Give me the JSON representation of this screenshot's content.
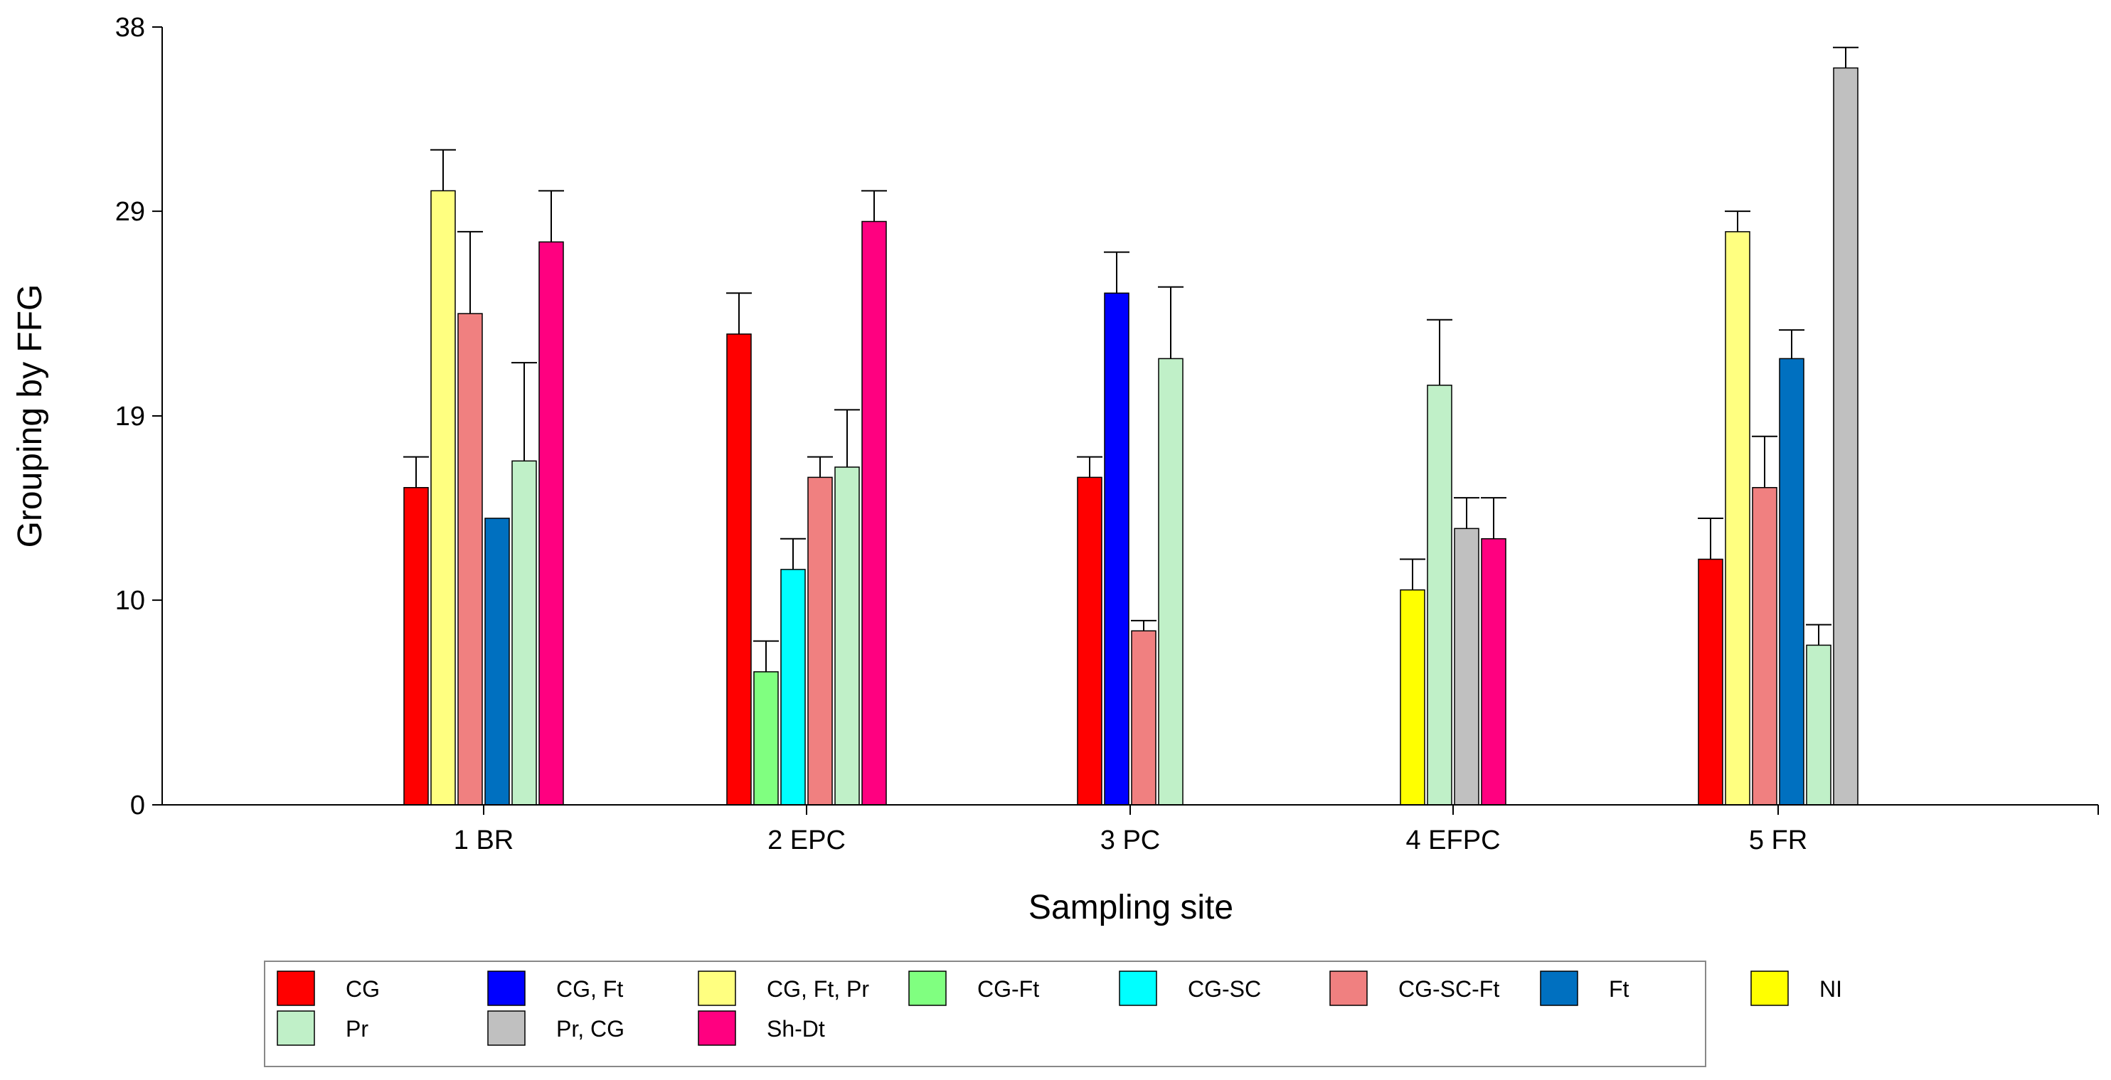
{
  "chart_data": {
    "type": "bar",
    "xlabel": "Sampling site",
    "ylabel": "Grouping by FFG",
    "ylim": [
      0,
      38
    ],
    "yticks": [
      "0",
      "10",
      "19",
      "29",
      "38"
    ],
    "categories": [
      "1 BR",
      "2 EPC",
      "3 PC",
      "4 EFPC",
      "5 FR"
    ],
    "legend_position": "bottom",
    "series": [
      {
        "name": "CG",
        "color": "#ff0000"
      },
      {
        "name": "CG, Ft",
        "color": "#0000ff"
      },
      {
        "name": "CG, Ft, Pr",
        "color": "#ffff80"
      },
      {
        "name": "CG-Ft",
        "color": "#80ff80"
      },
      {
        "name": "CG-SC",
        "color": "#00ffff"
      },
      {
        "name": "CG-SC-Ft",
        "color": "#f08080"
      },
      {
        "name": "Ft",
        "color": "#0070c0"
      },
      {
        "name": "NI",
        "color": "#ffff00"
      },
      {
        "name": "Pr",
        "color": "#c0f0c8"
      },
      {
        "name": "Pr, CG",
        "color": "#c0c0c0"
      },
      {
        "name": "Sh-Dt",
        "color": "#ff0080"
      }
    ],
    "groups": [
      {
        "site": "1 BR",
        "bars": [
          {
            "series": "CG",
            "value": 15.5,
            "error": 1.5
          },
          {
            "series": "CG, Ft, Pr",
            "value": 30.0,
            "error": 2.0
          },
          {
            "series": "CG-SC-Ft",
            "value": 24.0,
            "error": 4.0
          },
          {
            "series": "Ft",
            "value": 14.0,
            "error": 0
          },
          {
            "series": "Pr",
            "value": 16.8,
            "error": 4.8
          },
          {
            "series": "Sh-Dt",
            "value": 27.5,
            "error": 2.5
          }
        ]
      },
      {
        "site": "2 EPC",
        "bars": [
          {
            "series": "CG",
            "value": 23.0,
            "error": 2.0
          },
          {
            "series": "CG-Ft",
            "value": 6.5,
            "error": 1.5
          },
          {
            "series": "CG-SC",
            "value": 11.5,
            "error": 1.5
          },
          {
            "series": "CG-SC-Ft",
            "value": 16.0,
            "error": 1.0
          },
          {
            "series": "Pr",
            "value": 16.5,
            "error": 2.8
          },
          {
            "series": "Sh-Dt",
            "value": 28.5,
            "error": 1.5
          }
        ]
      },
      {
        "site": "3 PC",
        "bars": [
          {
            "series": "CG",
            "value": 16.0,
            "error": 1.0
          },
          {
            "series": "CG, Ft",
            "value": 25.0,
            "error": 2.0
          },
          {
            "series": "CG-SC-Ft",
            "value": 8.5,
            "error": 0.5
          },
          {
            "series": "Pr",
            "value": 21.8,
            "error": 3.5
          }
        ]
      },
      {
        "site": "4 EFPC",
        "bars": [
          {
            "series": "NI",
            "value": 10.5,
            "error": 1.5
          },
          {
            "series": "Pr",
            "value": 20.5,
            "error": 3.2
          },
          {
            "series": "Pr, CG",
            "value": 13.5,
            "error": 1.5
          },
          {
            "series": "Sh-Dt",
            "value": 13.0,
            "error": 2.0
          }
        ]
      },
      {
        "site": "5 FR",
        "bars": [
          {
            "series": "CG",
            "value": 12.0,
            "error": 2.0
          },
          {
            "series": "CG, Ft, Pr",
            "value": 28.0,
            "error": 1.0
          },
          {
            "series": "CG-SC-Ft",
            "value": 15.5,
            "error": 2.5
          },
          {
            "series": "Ft",
            "value": 21.8,
            "error": 1.4
          },
          {
            "series": "Pr",
            "value": 7.8,
            "error": 1.0
          },
          {
            "series": "Pr, CG",
            "value": 36.0,
            "error": 1.0
          }
        ]
      }
    ]
  }
}
